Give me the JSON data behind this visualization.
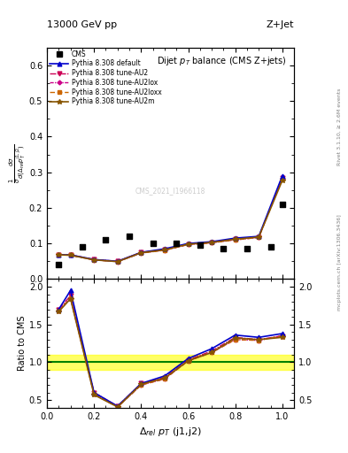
{
  "title_top": "13000 GeV pp",
  "title_right": "Z+Jet",
  "plot_title": "Dijet $p_T$ balance (CMS Z+jets)",
  "ylabel_main": "$\\frac{1}{\\sigma}\\frac{d\\sigma}{d(\\Delta_{rel} p_T^{j1,j2})}$",
  "ylabel_ratio": "Ratio to CMS",
  "xlabel": "$\\Delta_{rel}$ $p_T$ (j1,j2)",
  "watermark": "CMS_2021_I1966118",
  "rivet_label": "Rivet 3.1.10, ≥ 2.6M events",
  "arxiv_label": "mcplots.cern.ch [arXiv:1306.3436]",
  "cms_x": [
    0.05,
    0.15,
    0.25,
    0.35,
    0.45,
    0.55,
    0.65,
    0.75,
    0.85,
    0.95
  ],
  "cms_y": [
    0.04,
    0.09,
    0.11,
    0.12,
    0.1,
    0.1,
    0.095,
    0.085,
    0.085,
    0.09
  ],
  "cms_last_x": [
    1.0
  ],
  "cms_last_y": [
    0.21
  ],
  "x": [
    0.05,
    0.1,
    0.2,
    0.3,
    0.4,
    0.5,
    0.6,
    0.7,
    0.8,
    0.9,
    1.0
  ],
  "default_y": [
    0.068,
    0.068,
    0.055,
    0.05,
    0.075,
    0.085,
    0.1,
    0.105,
    0.115,
    0.12,
    0.29
  ],
  "au2_y": [
    0.068,
    0.068,
    0.055,
    0.05,
    0.075,
    0.083,
    0.098,
    0.103,
    0.112,
    0.118,
    0.285
  ],
  "au2lox_y": [
    0.068,
    0.067,
    0.054,
    0.049,
    0.073,
    0.081,
    0.097,
    0.102,
    0.11,
    0.117,
    0.283
  ],
  "au2loxx_y": [
    0.068,
    0.067,
    0.054,
    0.049,
    0.073,
    0.081,
    0.097,
    0.102,
    0.11,
    0.117,
    0.283
  ],
  "au2m_y": [
    0.068,
    0.067,
    0.054,
    0.049,
    0.074,
    0.082,
    0.098,
    0.103,
    0.112,
    0.118,
    0.277
  ],
  "default_ratio": [
    1.7,
    1.95,
    0.6,
    0.42,
    0.72,
    0.82,
    1.05,
    1.18,
    1.36,
    1.33,
    1.38
  ],
  "au2_ratio": [
    1.7,
    1.88,
    0.6,
    0.42,
    0.72,
    0.8,
    1.03,
    1.15,
    1.33,
    1.3,
    1.35
  ],
  "au2lox_ratio": [
    1.68,
    1.85,
    0.58,
    0.41,
    0.7,
    0.78,
    1.02,
    1.13,
    1.3,
    1.29,
    1.35
  ],
  "au2loxx_ratio": [
    1.68,
    1.85,
    0.58,
    0.41,
    0.7,
    0.78,
    1.02,
    1.13,
    1.3,
    1.29,
    1.35
  ],
  "au2m_ratio": [
    1.67,
    1.84,
    0.57,
    0.41,
    0.71,
    0.79,
    1.02,
    1.13,
    1.32,
    1.3,
    1.33
  ],
  "color_default": "#0000cc",
  "color_au2": "#cc0055",
  "color_au2lox": "#cc0088",
  "color_au2loxx": "#cc6600",
  "color_au2m": "#885500",
  "ylim_main": [
    0.0,
    0.65
  ],
  "ylim_ratio": [
    0.4,
    2.1
  ],
  "xlim": [
    0.0,
    1.05
  ],
  "yticks_main": [
    0.0,
    0.1,
    0.2,
    0.3,
    0.4,
    0.5,
    0.6
  ],
  "yticks_ratio": [
    0.5,
    1.0,
    1.5,
    2.0
  ]
}
